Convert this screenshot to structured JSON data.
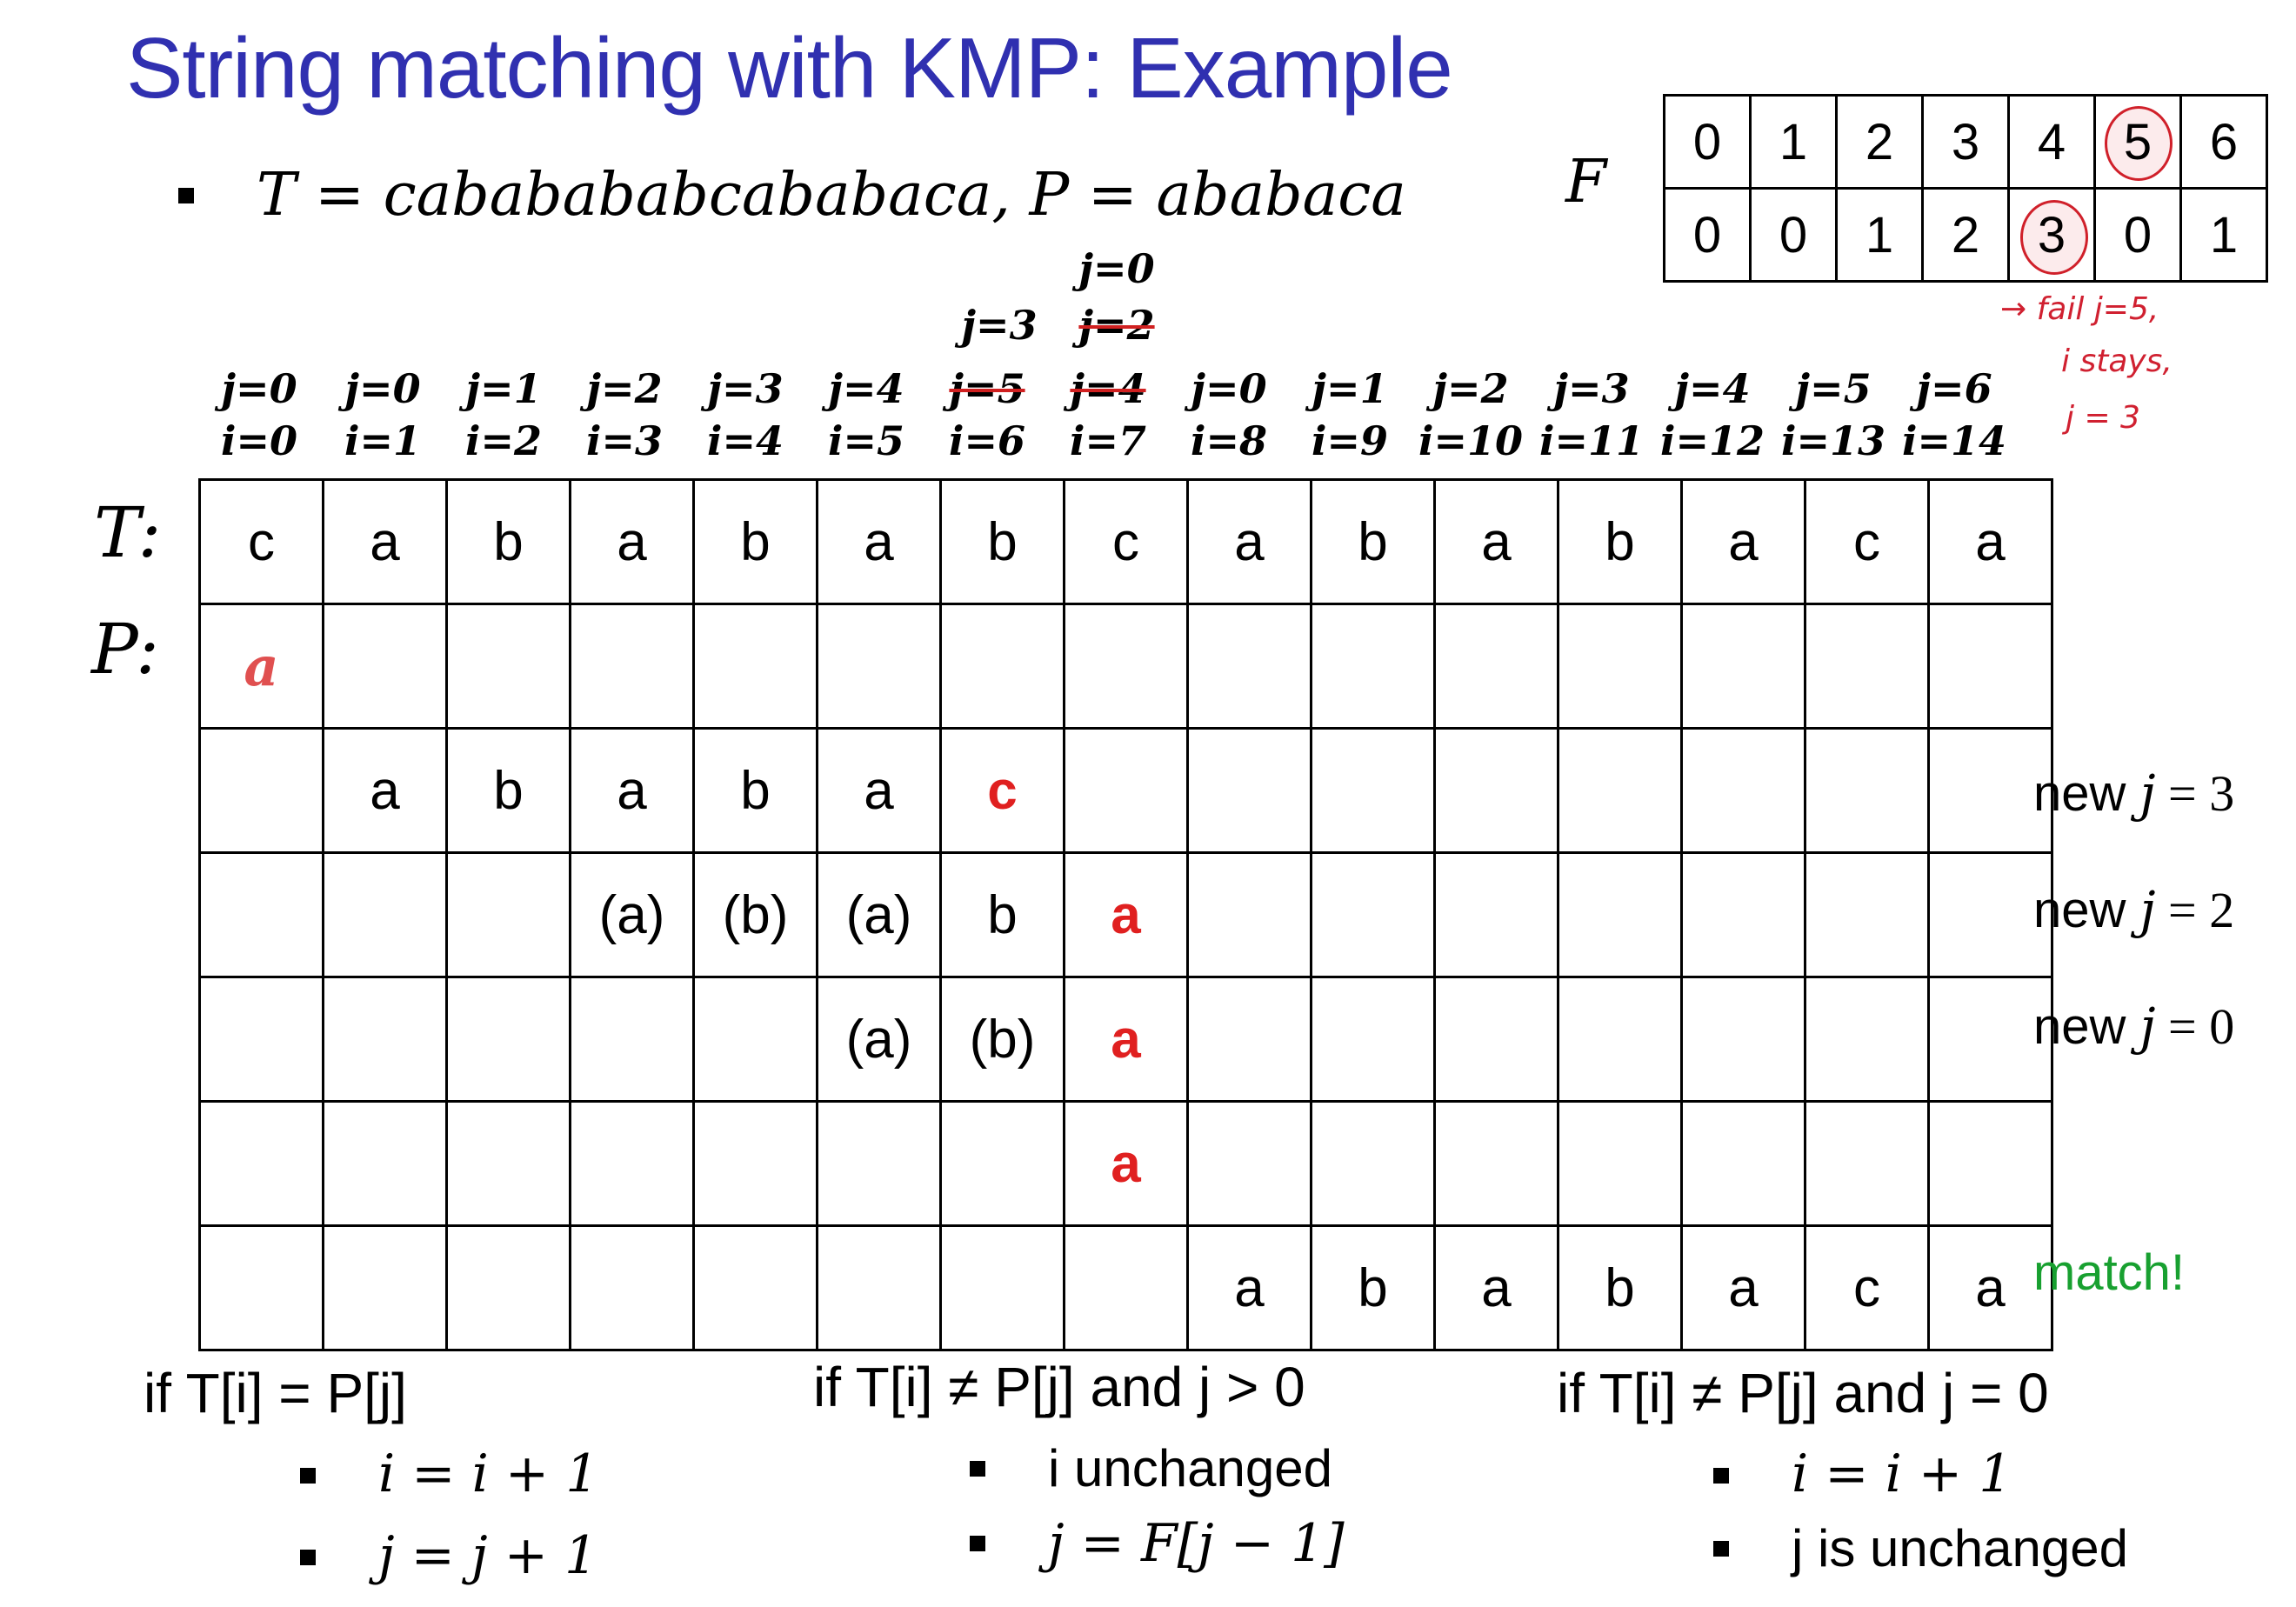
{
  "title": "String matching with KMP:  Example",
  "given": "T = cababababcababaca, P = ababaca",
  "failure_table": {
    "label": "F",
    "top": [
      "0",
      "1",
      "2",
      "3",
      "4",
      "5",
      "6"
    ],
    "bottom": [
      "0",
      "0",
      "1",
      "2",
      "3",
      "0",
      "1"
    ],
    "circled_top_index": 5,
    "circled_bottom_index": 4
  },
  "handwritten_note": [
    "→ fail j=5,",
    "i stays,",
    "j = 3"
  ],
  "index_labels": [
    {
      "j": "j=0",
      "i": "i=0"
    },
    {
      "j": "j=0",
      "i": "i=1"
    },
    {
      "j": "j=1",
      "i": "i=2"
    },
    {
      "j": "j=2",
      "i": "i=3"
    },
    {
      "j": "j=3",
      "i": "i=4"
    },
    {
      "j": "j=4",
      "i": "i=5"
    },
    {
      "j": "j=5",
      "i": "i=6"
    },
    {
      "j": "j=4",
      "i": "i=7"
    },
    {
      "j": "j=0",
      "i": "i=8"
    },
    {
      "j": "j=1",
      "i": "i=9"
    },
    {
      "j": "j=2",
      "i": "i=10"
    },
    {
      "j": "j=3",
      "i": "i=11"
    },
    {
      "j": "j=4",
      "i": "i=12"
    },
    {
      "j": "j=5",
      "i": "i=13"
    },
    {
      "j": "j=6",
      "i": "i=14"
    }
  ],
  "extra_j_labels": {
    "col6_upper": "j=3",
    "col7_mid": "j=2",
    "col7_top": "j=0"
  },
  "row_labels": {
    "t": "T:",
    "p": "P:"
  },
  "text_row": [
    "c",
    "a",
    "b",
    "a",
    "b",
    "a",
    "b",
    "c",
    "a",
    "b",
    "a",
    "b",
    "a",
    "c",
    "a"
  ],
  "p_first": "a",
  "attempt1": [
    "a",
    "b",
    "a",
    "b",
    "a",
    "c"
  ],
  "attempt2": [
    "(a)",
    "(b)",
    "(a)",
    "b",
    "a"
  ],
  "attempt3": [
    "(a)",
    "(b)",
    "a"
  ],
  "attempt4": [
    "a"
  ],
  "attempt5": [
    "a",
    "b",
    "a",
    "b",
    "a",
    "c",
    "a"
  ],
  "side_notes": {
    "r1_pre": "new ",
    "r1_var": "j",
    "r1_post": " = 3",
    "r2_pre": "new ",
    "r2_var": "j",
    "r2_post": " = 2",
    "r3_pre": "new ",
    "r3_var": "j",
    "r3_post": " = 0",
    "match": "match!"
  },
  "rules": {
    "c1_head": "if T[i] = P[j]",
    "c1_a": "i = i + 1",
    "c1_b": "j = j + 1",
    "c2_head": "if T[i] ≠ P[j]  and  j > 0",
    "c2_a": "i  unchanged",
    "c2_b": "j = F[j − 1]",
    "c3_head": "if T[i] ≠ P[j]  and  j = 0",
    "c3_a": "i = i + 1",
    "c3_b": "j is unchanged"
  }
}
